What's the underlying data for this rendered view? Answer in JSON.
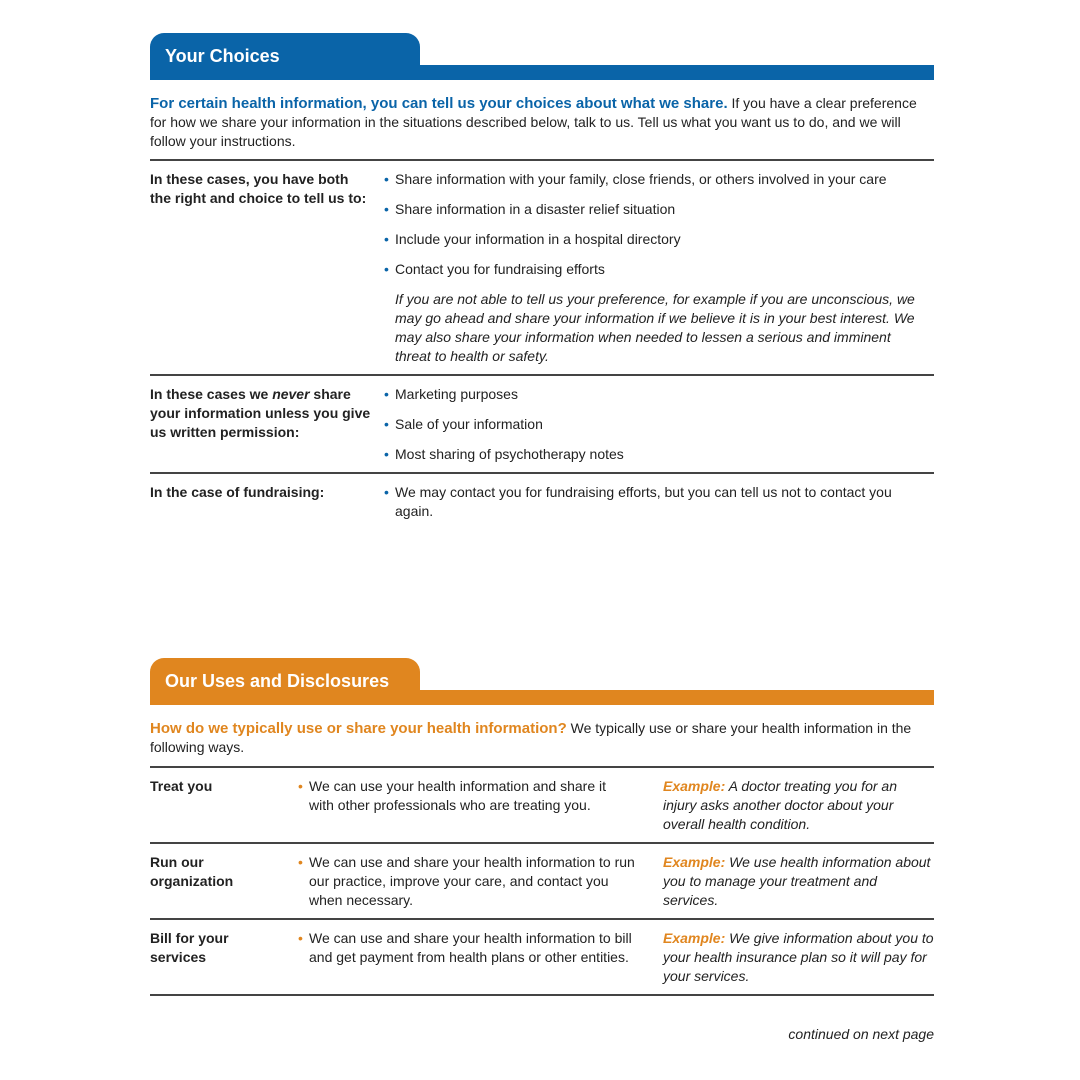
{
  "choices": {
    "tab_title": "Your Choices",
    "intro_bold": "For certain health information, you can tell us your choices about what we share.",
    "intro_text": " If you have a clear preference for how we share your information in the situations described below, talk to us. Tell us what you want us to do, and we will follow your instructions.",
    "rows": [
      {
        "label_pre": "In these cases, you have both the right and choice to tell us to:",
        "items": [
          "Share information with your family, close friends, or others involved in your care",
          "Share information in a disaster relief situation",
          "Include your information in a hospital directory",
          "Contact you for fundraising efforts"
        ],
        "note": "If you are not able to tell us your preference, for example if you are unconscious, we may go ahead and share your information if we believe it is in your best interest. We may also share your information when needed to lessen a serious and imminent threat to health or safety."
      },
      {
        "label_pre": "In these cases we ",
        "label_em": "never",
        "label_post": " share your information unless you give us written permission:",
        "items": [
          "Marketing purposes",
          "Sale of your information",
          "Most sharing of psychotherapy notes"
        ]
      },
      {
        "label_pre": "In the case of fundraising:",
        "items": [
          "We may contact you for fundraising efforts, but you can tell us not to contact you again."
        ]
      }
    ]
  },
  "uses": {
    "tab_title": "Our Uses and Disclosures",
    "intro_bold": "How do we typically use or share your health information?",
    "intro_text": " We typically use or share your health information in the following ways.",
    "rows": [
      {
        "label": "Treat you",
        "item": "We can use your health information and share it with other professionals who are treating you.",
        "example_label": "Example:",
        "example": " A doctor treating you for an injury asks another doctor about your overall health condition."
      },
      {
        "label": "Run our organization",
        "item": "We can use and share your health information to run our practice, improve your care, and contact you when necessary.",
        "example_label": "Example:",
        "example": " We use health information about you to manage your treatment and services."
      },
      {
        "label": "Bill for your services",
        "item": "We can use and share your health information to bill and get payment from health plans or other entities.",
        "example_label": "Example:",
        "example": " We give information about you to your health insurance plan so it will pay for your services."
      }
    ]
  },
  "footer": {
    "continued": "continued on next page"
  },
  "colors": {
    "blue": "#0a64a8",
    "orange": "#e0861f"
  }
}
